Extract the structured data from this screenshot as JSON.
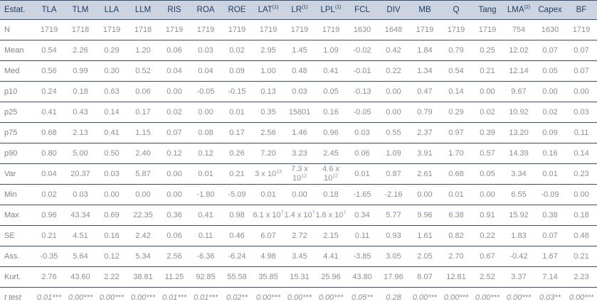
{
  "table": {
    "colors": {
      "header_bg": "#ccd4e2",
      "header_fg": "#1e3a5f",
      "data_fg": "#8b8e94",
      "label_fg": "#80838a",
      "line": "#32506e"
    },
    "columns": [
      "Estat.",
      "TLA",
      "TLM",
      "LLA",
      "LLM",
      "RIS",
      "ROA",
      "ROE",
      "LAT^(1)",
      "LR^(1)",
      "LPL^(1)",
      "FCL",
      "DIV",
      "MB",
      "Q",
      "Tang",
      "LMA^(2)",
      "Capex",
      "BF"
    ],
    "rows": [
      {
        "label": "N",
        "italic": false,
        "values": [
          "1719",
          "1718",
          "1719",
          "1718",
          "1719",
          "1719",
          "1719",
          "1719",
          "1719",
          "1719",
          "1630",
          "1648",
          "1719",
          "1719",
          "1719",
          "754",
          "1630",
          "1719"
        ]
      },
      {
        "label": "Mean",
        "italic": false,
        "values": [
          "0.54",
          "2.26",
          "0.29",
          "1.20",
          "0.06",
          "0.03",
          "0.02",
          "2.95",
          "1.45",
          "1.09",
          "-0.02",
          "0.42",
          "1.84",
          "0.79",
          "0.25",
          "12.02",
          "0.07",
          "0.07"
        ]
      },
      {
        "label": "Med",
        "italic": false,
        "values": [
          "0.56",
          "0.99",
          "0.30",
          "0.52",
          "0.04",
          "0.04",
          "0.09",
          "1.00",
          "0.48",
          "0.41",
          "-0.01",
          "0.22",
          "1.34",
          "0.54",
          "0.21",
          "12.14",
          "0.05",
          "0.07"
        ]
      },
      {
        "label": "p10",
        "italic": false,
        "values": [
          "0.24",
          "0.18",
          "0.63",
          "0.06",
          "0.00",
          "-0.05",
          "-0.15",
          "0.13",
          "0.03",
          "0.05",
          "-0.13",
          "0.00",
          "0.47",
          "0.14",
          "0.00",
          "9.67",
          "0.00",
          "0.00"
        ]
      },
      {
        "label": "p25",
        "italic": false,
        "values": [
          "0.41",
          "0.43",
          "0.14",
          "0.17",
          "0.02",
          "0.00",
          "0.01",
          "0.35",
          "15801",
          "0.16",
          "-0.05",
          "0.00",
          "0.79",
          "0.29",
          "0.02",
          "10.92",
          "0.02",
          "0.03"
        ]
      },
      {
        "label": "p75",
        "italic": false,
        "values": [
          "0.68",
          "2.13",
          "0.41",
          "1.15",
          "0.07",
          "0.08",
          "0.17",
          "2.56",
          "1.46",
          "0.96",
          "0.03",
          "0.55",
          "2.37",
          "0.97",
          "0.39",
          "13.20",
          "0.09",
          "0.11"
        ]
      },
      {
        "label": "p90",
        "italic": false,
        "values": [
          "0.80",
          "5.00",
          "0.50",
          "2.40",
          "0.12",
          "0.12",
          "0.26",
          "7.20",
          "3.23",
          "2.45",
          "0.06",
          "1.09",
          "3.91",
          "1.70",
          "0.57",
          "14.39",
          "0.16",
          "0.14"
        ]
      },
      {
        "label": "Var",
        "italic": false,
        "values": [
          "0.04",
          "20.37",
          "0.03",
          "5.87",
          "0.00",
          "0.01",
          "0.21",
          "3 x 10^13",
          "7.3 x 10^12",
          "4.6 x 10^12",
          "0.01",
          "0.87",
          "2.61",
          "0.68",
          "0.05",
          "3.34",
          "0.01",
          "0.23"
        ]
      },
      {
        "label": "Min",
        "italic": false,
        "values": [
          "0.02",
          "0.03",
          "0.00",
          "0.00",
          "0.00",
          "-1.80",
          "-5.09",
          "0.01",
          "0.00",
          "0.18",
          "-1.65",
          "-2.16",
          "0.00",
          "0.01",
          "0.00",
          "6.55",
          "-0.09",
          "0.00"
        ]
      },
      {
        "label": "Max",
        "italic": false,
        "values": [
          "0.96",
          "43.34",
          "0.69",
          "22.35",
          "0.36",
          "0.41",
          "0.98",
          "6.1 x 10^7",
          "1.4 x 10^7",
          "1.6 x 10^7",
          "0.34",
          "5.77",
          "9.96",
          "6.38",
          "0.91",
          "15.92",
          "0.38",
          "0.18"
        ]
      },
      {
        "label": "SE",
        "italic": false,
        "values": [
          "0.21",
          "4.51",
          "0.16",
          "2.42",
          "0.06",
          "0.11",
          "0.46",
          "6.07",
          "2.72",
          "2.15",
          "0.11",
          "0.93",
          "1.61",
          "0.82",
          "0.22",
          "1.83",
          "0.07",
          "0.48"
        ]
      },
      {
        "label": "Ass.",
        "italic": false,
        "values": [
          "-0.35",
          "5.64",
          "0.12",
          "5.34",
          "2.56",
          "-6.36",
          "-6.24",
          "4.98",
          "3.45",
          "4.41",
          "-3.85",
          "3.05",
          "2.05",
          "2.70",
          "0.67",
          "-0.42",
          "1.67",
          "0.21"
        ]
      },
      {
        "label": "Kurt.",
        "italic": false,
        "values": [
          "2.76",
          "43.60",
          "2.22",
          "38.81",
          "11.25",
          "92.85",
          "55.58",
          "35.85",
          "15.31",
          "25.96",
          "43.80",
          "17.96",
          "8.07",
          "12.81",
          "2.52",
          "3.37",
          "7.14",
          "2.23"
        ]
      },
      {
        "label": "t test",
        "italic": true,
        "values": [
          "0.01***",
          "0.00***",
          "0.00***",
          "0.00***",
          "0.01***",
          "0.01***",
          "0.02**",
          "0.00***",
          "0.00***",
          "0.00***",
          "0.05**",
          "0.28",
          "0.00***",
          "0.00***",
          "0.00***",
          "0.00***",
          "0.03**",
          "0.00***"
        ]
      }
    ]
  }
}
